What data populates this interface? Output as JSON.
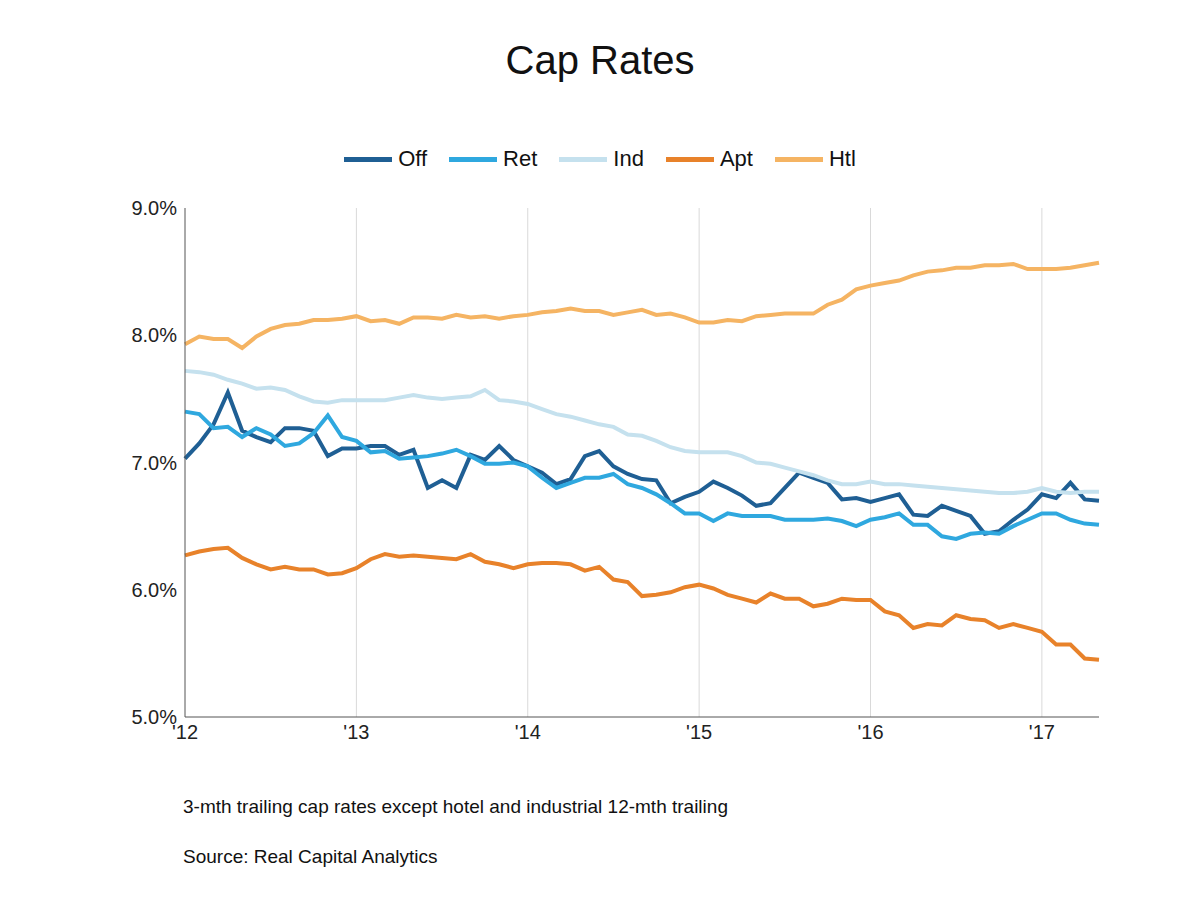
{
  "chart_data": {
    "type": "line",
    "title": "Cap Rates",
    "annotations": [
      "3-mth trailing cap rates except hotel and industrial 12-mth trailing",
      "Source: Real Capital Analytics"
    ],
    "legend": "top",
    "grid": true,
    "categories": [
      "'12",
      null,
      null,
      null,
      null,
      null,
      null,
      null,
      null,
      null,
      null,
      null,
      "'13",
      null,
      null,
      null,
      null,
      null,
      null,
      null,
      null,
      null,
      null,
      null,
      "'14",
      null,
      null,
      null,
      null,
      null,
      null,
      null,
      null,
      null,
      null,
      null,
      "'15",
      null,
      null,
      null,
      null,
      null,
      null,
      null,
      null,
      null,
      null,
      null,
      "'16",
      null,
      null,
      null,
      null,
      null,
      null,
      null,
      null,
      null,
      null,
      null,
      "'17",
      null,
      null,
      null,
      null
    ],
    "ylim": [
      5,
      9
    ],
    "yticks": [
      {
        "value": 5,
        "label": "5.0%"
      },
      {
        "value": 6,
        "label": "6.0%"
      },
      {
        "value": 7,
        "label": "7.0%"
      },
      {
        "value": 8,
        "label": "8.0%"
      },
      {
        "value": 9,
        "label": "9.0%"
      }
    ],
    "series": [
      {
        "name": "Off",
        "color": "#1f5f94",
        "values": [
          7.03,
          7.15,
          7.3,
          7.55,
          7.25,
          7.2,
          7.16,
          7.27,
          7.27,
          7.25,
          7.05,
          7.11,
          7.11,
          7.13,
          7.13,
          7.06,
          7.1,
          6.8,
          6.86,
          6.8,
          7.06,
          7.02,
          7.13,
          7.02,
          6.97,
          6.92,
          6.83,
          6.87,
          7.05,
          7.09,
          6.97,
          6.91,
          6.87,
          6.86,
          6.68,
          6.73,
          6.77,
          6.85,
          6.8,
          6.74,
          6.66,
          6.68,
          6.8,
          6.92,
          6.88,
          6.84,
          6.71,
          6.72,
          6.69,
          6.72,
          6.75,
          6.59,
          6.58,
          6.66,
          6.62,
          6.58,
          6.44,
          6.46,
          6.55,
          6.63,
          6.75,
          6.72,
          6.84,
          6.71,
          6.7
        ]
      },
      {
        "name": "Ret",
        "color": "#2fa8df",
        "values": [
          7.4,
          7.38,
          7.27,
          7.28,
          7.2,
          7.27,
          7.22,
          7.13,
          7.15,
          7.23,
          7.37,
          7.2,
          7.17,
          7.08,
          7.09,
          7.03,
          7.04,
          7.05,
          7.07,
          7.1,
          7.05,
          6.99,
          6.99,
          7.0,
          6.97,
          6.88,
          6.8,
          6.84,
          6.88,
          6.88,
          6.91,
          6.83,
          6.8,
          6.75,
          6.68,
          6.6,
          6.6,
          6.54,
          6.6,
          6.58,
          6.58,
          6.58,
          6.55,
          6.55,
          6.55,
          6.56,
          6.54,
          6.5,
          6.55,
          6.57,
          6.6,
          6.51,
          6.51,
          6.42,
          6.4,
          6.44,
          6.45,
          6.44,
          6.5,
          6.55,
          6.6,
          6.6,
          6.55,
          6.52,
          6.51
        ]
      },
      {
        "name": "Ind",
        "color": "#c5e1ee",
        "values": [
          7.72,
          7.71,
          7.69,
          7.65,
          7.62,
          7.58,
          7.59,
          7.57,
          7.52,
          7.48,
          7.47,
          7.49,
          7.49,
          7.49,
          7.49,
          7.51,
          7.53,
          7.51,
          7.5,
          7.51,
          7.52,
          7.57,
          7.49,
          7.48,
          7.46,
          7.42,
          7.38,
          7.36,
          7.33,
          7.3,
          7.28,
          7.22,
          7.21,
          7.17,
          7.12,
          7.09,
          7.08,
          7.08,
          7.08,
          7.05,
          7.0,
          6.99,
          6.96,
          6.93,
          6.9,
          6.86,
          6.83,
          6.83,
          6.85,
          6.83,
          6.83,
          6.82,
          6.81,
          6.8,
          6.79,
          6.78,
          6.77,
          6.76,
          6.76,
          6.77,
          6.8,
          6.77,
          6.76,
          6.77,
          6.77
        ]
      },
      {
        "name": "Apt",
        "color": "#e8822a",
        "values": [
          6.27,
          6.3,
          6.32,
          6.33,
          6.25,
          6.2,
          6.16,
          6.18,
          6.16,
          6.16,
          6.12,
          6.13,
          6.17,
          6.24,
          6.28,
          6.26,
          6.27,
          6.26,
          6.25,
          6.24,
          6.28,
          6.22,
          6.2,
          6.17,
          6.2,
          6.21,
          6.21,
          6.2,
          6.15,
          6.18,
          6.08,
          6.06,
          5.95,
          5.96,
          5.98,
          6.02,
          6.04,
          6.01,
          5.96,
          5.93,
          5.9,
          5.97,
          5.93,
          5.93,
          5.87,
          5.89,
          5.93,
          5.92,
          5.92,
          5.83,
          5.8,
          5.7,
          5.73,
          5.72,
          5.8,
          5.77,
          5.76,
          5.7,
          5.73,
          5.7,
          5.67,
          5.57,
          5.57,
          5.46,
          5.45
        ]
      },
      {
        "name": "Htl",
        "color": "#f5b463",
        "values": [
          7.93,
          7.99,
          7.97,
          7.97,
          7.9,
          7.99,
          8.05,
          8.08,
          8.09,
          8.12,
          8.12,
          8.13,
          8.15,
          8.11,
          8.12,
          8.09,
          8.14,
          8.14,
          8.13,
          8.16,
          8.14,
          8.15,
          8.13,
          8.15,
          8.16,
          8.18,
          8.19,
          8.21,
          8.19,
          8.19,
          8.16,
          8.18,
          8.2,
          8.16,
          8.17,
          8.14,
          8.1,
          8.1,
          8.12,
          8.11,
          8.15,
          8.16,
          8.17,
          8.17,
          8.17,
          8.24,
          8.28,
          8.36,
          8.39,
          8.41,
          8.43,
          8.47,
          8.5,
          8.51,
          8.53,
          8.53,
          8.55,
          8.55,
          8.56,
          8.52,
          8.52,
          8.52,
          8.53,
          8.55,
          8.57
        ]
      }
    ]
  }
}
